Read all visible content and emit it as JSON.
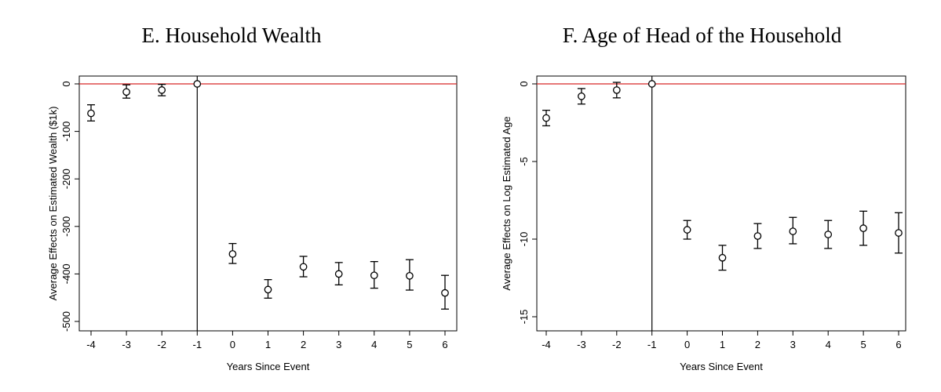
{
  "chart_data": [
    {
      "panel": "E",
      "type": "scatter",
      "title": "E. Household Wealth",
      "xlabel": "Years Since Event",
      "ylabel": "Average Effects on Estimated Wealth ($1k)",
      "xlim": [
        -4,
        6
      ],
      "ylim": [
        -500,
        0
      ],
      "xticks": [
        -4,
        -3,
        -2,
        -1,
        0,
        1,
        2,
        3,
        4,
        5,
        6
      ],
      "yticks": [
        0,
        -100,
        -200,
        -300,
        -400,
        -500
      ],
      "grid": false,
      "series": [
        {
          "x": [
            -4,
            -3,
            -2,
            -1,
            0,
            1,
            2,
            3,
            4,
            5,
            6
          ],
          "y": [
            -62,
            -17,
            -13,
            0,
            -358,
            -433,
            -385,
            -400,
            -403,
            -404,
            -440
          ],
          "lower": [
            -78,
            -30,
            -25,
            0,
            -378,
            -451,
            -406,
            -423,
            -430,
            -434,
            -474
          ],
          "upper": [
            -44,
            -2,
            -1,
            0,
            -336,
            -412,
            -363,
            -376,
            -374,
            -370,
            -403
          ]
        }
      ],
      "reference_lines": [
        {
          "orientation": "horizontal",
          "value": 0,
          "color": "#d62728"
        },
        {
          "orientation": "vertical",
          "value": -1,
          "color": "#000000"
        }
      ]
    },
    {
      "panel": "F",
      "type": "scatter",
      "title": "F. Age of Head of the Household",
      "xlabel": "Years Since Event",
      "ylabel": "Average Effects on Log Estimated Age",
      "xlim": [
        -4,
        6
      ],
      "ylim": [
        -15,
        0
      ],
      "xticks": [
        -4,
        -3,
        -2,
        -1,
        0,
        1,
        2,
        3,
        4,
        5,
        6
      ],
      "yticks": [
        0,
        -5,
        -10,
        -15
      ],
      "grid": false,
      "series": [
        {
          "x": [
            -4,
            -3,
            -2,
            -1,
            0,
            1,
            2,
            3,
            4,
            5,
            6
          ],
          "y": [
            -2.2,
            -0.8,
            -0.4,
            0,
            -9.4,
            -11.2,
            -9.8,
            -9.5,
            -9.7,
            -9.3,
            -9.6
          ],
          "lower": [
            -2.7,
            -1.3,
            -0.9,
            0,
            -10.0,
            -12.0,
            -10.6,
            -10.3,
            -10.6,
            -10.4,
            -10.9
          ],
          "upper": [
            -1.7,
            -0.3,
            0.1,
            0,
            -8.8,
            -10.4,
            -9.0,
            -8.6,
            -8.8,
            -8.2,
            -8.3
          ]
        }
      ],
      "reference_lines": [
        {
          "orientation": "horizontal",
          "value": 0,
          "color": "#d62728"
        },
        {
          "orientation": "vertical",
          "value": -1,
          "color": "#000000"
        }
      ]
    }
  ]
}
